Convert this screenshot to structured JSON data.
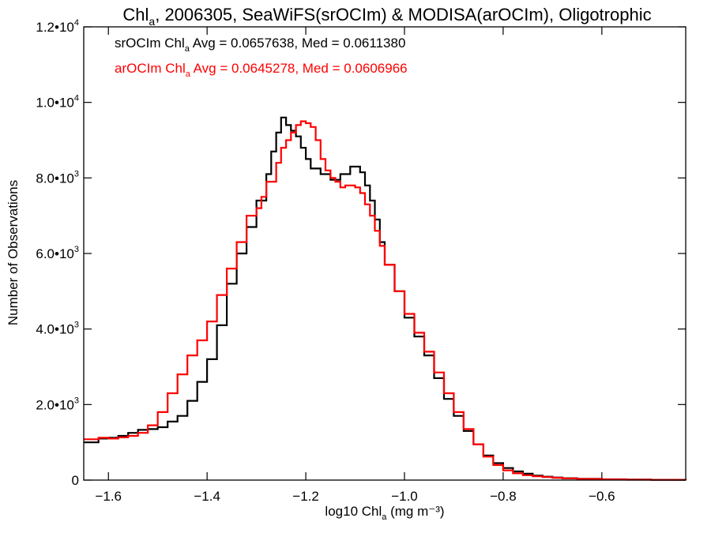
{
  "chart_data": {
    "type": "line",
    "title": {
      "pre": "Chl",
      "sub": "a",
      "post": ", 2006305, SeaWiFS(srOCIm) & MODISA(arOCIm), Oligotrophic"
    },
    "xlabel": {
      "pre": "log10 Chl",
      "sub": "a",
      "post": " (mg m⁻³)"
    },
    "ylabel": "Number of Observations",
    "xlim": [
      -1.65,
      -0.43
    ],
    "ylim": [
      0,
      12000
    ],
    "x_ticks": [
      {
        "value": -1.6,
        "label": "−1.6"
      },
      {
        "value": -1.4,
        "label": "−1.4"
      },
      {
        "value": -1.2,
        "label": "−1.2"
      },
      {
        "value": -1.0,
        "label": "−1.0"
      },
      {
        "value": -0.8,
        "label": "−0.8"
      },
      {
        "value": -0.6,
        "label": "−0.6"
      }
    ],
    "y_ticks": [
      {
        "value": 0,
        "mant": "0",
        "exp": ""
      },
      {
        "value": 2000,
        "mant": "2.0•10",
        "exp": "3"
      },
      {
        "value": 4000,
        "mant": "4.0•10",
        "exp": "3"
      },
      {
        "value": 6000,
        "mant": "6.0•10",
        "exp": "3"
      },
      {
        "value": 8000,
        "mant": "8.0•10",
        "exp": "3"
      },
      {
        "value": 10000,
        "mant": "1.0•10",
        "exp": "4"
      },
      {
        "value": 12000,
        "mant": "1.2•10",
        "exp": "4"
      }
    ],
    "grid": false,
    "legend": [
      {
        "pre": "srOCIm Chl",
        "sub": "a",
        "post": " Avg = 0.0657638, Med = 0.0611380",
        "color": "#000000"
      },
      {
        "pre": "arOCIm Chl",
        "sub": "a",
        "post": " Avg = 0.0645278, Med = 0.0606966",
        "color": "#ff0000"
      }
    ],
    "series": [
      {
        "color": "#000000",
        "step": true,
        "points": [
          [
            -1.65,
            1000
          ],
          [
            -1.62,
            1100
          ],
          [
            -1.6,
            1120
          ],
          [
            -1.58,
            1170
          ],
          [
            -1.56,
            1250
          ],
          [
            -1.54,
            1330
          ],
          [
            -1.52,
            1350
          ],
          [
            -1.5,
            1400
          ],
          [
            -1.48,
            1550
          ],
          [
            -1.46,
            1700
          ],
          [
            -1.44,
            2100
          ],
          [
            -1.42,
            2600
          ],
          [
            -1.4,
            3200
          ],
          [
            -1.38,
            4100
          ],
          [
            -1.36,
            5200
          ],
          [
            -1.34,
            6000
          ],
          [
            -1.32,
            6700
          ],
          [
            -1.3,
            7400
          ],
          [
            -1.28,
            8100
          ],
          [
            -1.27,
            8700
          ],
          [
            -1.26,
            9200
          ],
          [
            -1.25,
            9600
          ],
          [
            -1.24,
            9400
          ],
          [
            -1.23,
            9250
          ],
          [
            -1.22,
            9100
          ],
          [
            -1.21,
            8800
          ],
          [
            -1.2,
            8500
          ],
          [
            -1.19,
            8250
          ],
          [
            -1.17,
            8100
          ],
          [
            -1.15,
            7950
          ],
          [
            -1.13,
            8100
          ],
          [
            -1.11,
            8300
          ],
          [
            -1.1,
            8300
          ],
          [
            -1.09,
            8150
          ],
          [
            -1.08,
            7800
          ],
          [
            -1.07,
            7400
          ],
          [
            -1.06,
            6900
          ],
          [
            -1.05,
            6300
          ],
          [
            -1.04,
            5700
          ],
          [
            -1.02,
            5000
          ],
          [
            -1.0,
            4300
          ],
          [
            -0.98,
            3800
          ],
          [
            -0.96,
            3300
          ],
          [
            -0.94,
            2700
          ],
          [
            -0.92,
            2150
          ],
          [
            -0.9,
            1700
          ],
          [
            -0.88,
            1300
          ],
          [
            -0.86,
            950
          ],
          [
            -0.84,
            650
          ],
          [
            -0.82,
            450
          ],
          [
            -0.8,
            320
          ],
          [
            -0.78,
            230
          ],
          [
            -0.76,
            170
          ],
          [
            -0.74,
            120
          ],
          [
            -0.72,
            90
          ],
          [
            -0.7,
            70
          ],
          [
            -0.68,
            50
          ],
          [
            -0.65,
            35
          ],
          [
            -0.6,
            20
          ],
          [
            -0.55,
            12
          ],
          [
            -0.5,
            8
          ],
          [
            -0.43,
            5
          ]
        ]
      },
      {
        "color": "#ff0000",
        "step": true,
        "points": [
          [
            -1.65,
            1080
          ],
          [
            -1.62,
            1120
          ],
          [
            -1.6,
            1100
          ],
          [
            -1.58,
            1130
          ],
          [
            -1.56,
            1170
          ],
          [
            -1.54,
            1250
          ],
          [
            -1.52,
            1450
          ],
          [
            -1.5,
            1800
          ],
          [
            -1.48,
            2300
          ],
          [
            -1.46,
            2800
          ],
          [
            -1.44,
            3300
          ],
          [
            -1.42,
            3700
          ],
          [
            -1.4,
            4200
          ],
          [
            -1.38,
            4900
          ],
          [
            -1.36,
            5600
          ],
          [
            -1.34,
            6300
          ],
          [
            -1.32,
            7000
          ],
          [
            -1.3,
            7200
          ],
          [
            -1.29,
            7500
          ],
          [
            -1.28,
            7900
          ],
          [
            -1.26,
            8400
          ],
          [
            -1.25,
            8800
          ],
          [
            -1.24,
            9000
          ],
          [
            -1.23,
            9200
          ],
          [
            -1.22,
            9400
          ],
          [
            -1.21,
            9500
          ],
          [
            -1.2,
            9450
          ],
          [
            -1.19,
            9350
          ],
          [
            -1.18,
            9000
          ],
          [
            -1.17,
            8500
          ],
          [
            -1.16,
            8200
          ],
          [
            -1.15,
            8000
          ],
          [
            -1.14,
            7900
          ],
          [
            -1.13,
            7750
          ],
          [
            -1.12,
            7800
          ],
          [
            -1.11,
            7800
          ],
          [
            -1.1,
            7750
          ],
          [
            -1.09,
            7600
          ],
          [
            -1.08,
            7300
          ],
          [
            -1.07,
            7000
          ],
          [
            -1.06,
            6600
          ],
          [
            -1.05,
            6200
          ],
          [
            -1.04,
            5700
          ],
          [
            -1.02,
            5000
          ],
          [
            -1.0,
            4400
          ],
          [
            -0.98,
            3900
          ],
          [
            -0.96,
            3400
          ],
          [
            -0.94,
            2850
          ],
          [
            -0.92,
            2300
          ],
          [
            -0.9,
            1800
          ],
          [
            -0.88,
            1350
          ],
          [
            -0.86,
            950
          ],
          [
            -0.84,
            620
          ],
          [
            -0.82,
            400
          ],
          [
            -0.8,
            260
          ],
          [
            -0.78,
            180
          ],
          [
            -0.76,
            130
          ],
          [
            -0.74,
            100
          ],
          [
            -0.72,
            80
          ],
          [
            -0.7,
            60
          ],
          [
            -0.68,
            45
          ],
          [
            -0.65,
            30
          ],
          [
            -0.6,
            18
          ],
          [
            -0.55,
            10
          ],
          [
            -0.5,
            6
          ],
          [
            -0.43,
            4
          ]
        ]
      }
    ]
  }
}
